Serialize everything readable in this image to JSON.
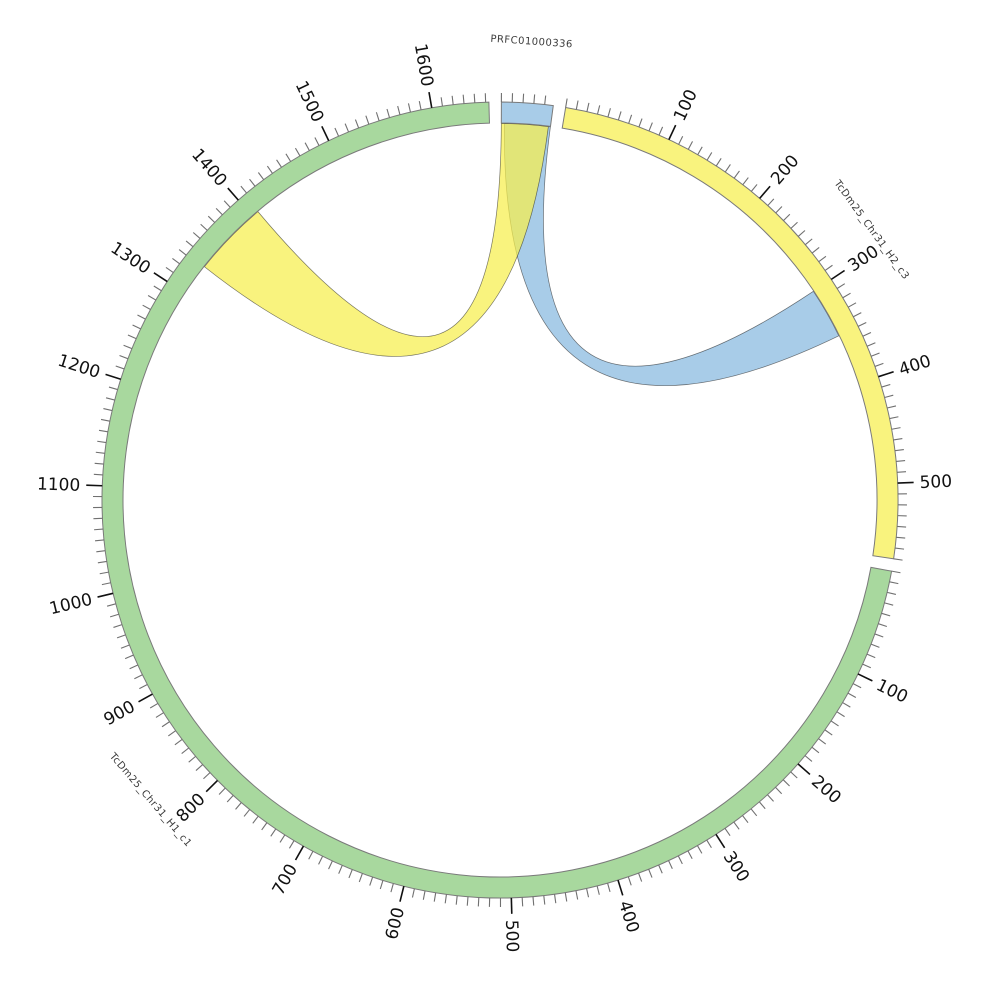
{
  "page": {
    "background": "#ffffff"
  },
  "chart_data": {
    "type": "circos-chord",
    "description": "Circular synteny (chord) plot linking contig PRFC01000336 to two haplotype chromosome segments",
    "center": [
      500,
      500
    ],
    "radius": {
      "band_outer": 398,
      "band_inner": 377
    },
    "gap_deg": 1.8,
    "rotation_start_deg": 0.2,
    "segment_stroke": "#7a7a7a",
    "segment_label_radius": 460,
    "segment_label_font_px": 10,
    "segment_label_color": "#3a3a3a",
    "segments": [
      {
        "name": "PRFC01000336",
        "length": 48,
        "fill": "#a8cce8",
        "major_tick_labels": []
      },
      {
        "name": "TcDm25_Chr31_H2_c3",
        "length": 570,
        "fill": "#f9f37e",
        "major_tick_labels": [
          100,
          200,
          300,
          400,
          500
        ]
      },
      {
        "name": "TcDm25_Chr31_H1_c1",
        "length": 1653,
        "fill": "#a8d89e",
        "major_tick_labels": [
          100,
          200,
          300,
          400,
          500,
          600,
          700,
          800,
          900,
          1000,
          1100,
          1200,
          1300,
          1400,
          1500,
          1600
        ]
      }
    ],
    "ticks": {
      "minor_interval": 10,
      "major_interval": 100,
      "minor_len": 9,
      "major_len": 16,
      "minor_color": "#707070",
      "major_color": "#111111",
      "label_radius": 420,
      "label_color": "#111111",
      "label_font_px": 17
    },
    "links": [
      {
        "source_segment": "PRFC01000336",
        "source_range": [
          3,
          48
        ],
        "target_segment": "TcDm25_Chr31_H2_c3",
        "target_range": [
          300,
          350
        ],
        "fill": "#86b8df",
        "opacity": 0.72,
        "twisted": true
      },
      {
        "source_segment": "PRFC01000336",
        "source_range": [
          0,
          46
        ],
        "target_segment": "TcDm25_Chr31_H1_c1",
        "target_range": [
          1332,
          1407
        ],
        "fill": "#f6ee4c",
        "opacity": 0.72,
        "twisted": true
      }
    ],
    "link_stroke": "rgba(30,30,30,0.6)",
    "link_stroke_width": 0.7
  }
}
